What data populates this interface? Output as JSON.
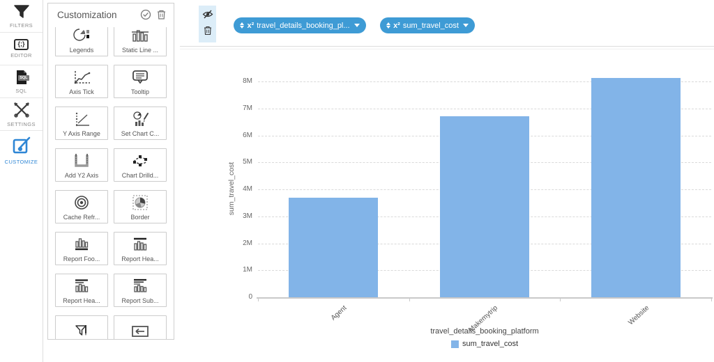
{
  "sidebar": {
    "items": [
      {
        "label": "FILTERS",
        "icon": "filter-funnel-icon"
      },
      {
        "label": "EDITOR",
        "icon": "editor-braces-icon"
      },
      {
        "label": "SQL",
        "icon": "sql-document-icon"
      },
      {
        "label": "SETTINGS",
        "icon": "crossed-tools-icon"
      },
      {
        "label": "CUSTOMIZE",
        "icon": "customize-pencil-icon"
      }
    ],
    "active_item": "CUSTOMIZE",
    "active_color": "#2e86d5"
  },
  "icons": {
    "editor_glyph": "{;}",
    "sql_glyph": "SQL"
  },
  "panel": {
    "title": "Customization",
    "header_icons": [
      "check-circle-icon",
      "trash-icon"
    ],
    "items": [
      {
        "label": "Legends",
        "icon": "legends-pie-icon"
      },
      {
        "label": "Static Line ...",
        "icon": "static-line-chart-icon"
      },
      {
        "label": "Axis Tick",
        "icon": "axis-tick-icon"
      },
      {
        "label": "Tooltip",
        "icon": "tooltip-bubble-icon"
      },
      {
        "label": "Y Axis Range",
        "icon": "y-axis-range-icon"
      },
      {
        "label": "Set Chart C...",
        "icon": "chart-color-icon"
      },
      {
        "label": "Add Y2 Axis",
        "icon": "y2-axis-icon"
      },
      {
        "label": "Chart Drilld...",
        "icon": "drilldown-loop-icon"
      },
      {
        "label": "Cache Refr...",
        "icon": "cache-refresh-icon"
      },
      {
        "label": "Border",
        "icon": "border-pie-icon"
      },
      {
        "label": "Report Foo...",
        "icon": "report-footer-icon"
      },
      {
        "label": "Report Hea...",
        "icon": "report-header-icon"
      },
      {
        "label": "Report Hea...",
        "icon": "report-header2-icon"
      },
      {
        "label": "Report Sub...",
        "icon": "report-subtitle-icon"
      },
      {
        "label": "",
        "icon": "filter-edit-icon"
      },
      {
        "label": "",
        "icon": "back-arrow-icon"
      }
    ]
  },
  "toolbar": {
    "strip_icons": [
      "eye-off-icon",
      "trash-icon"
    ],
    "pills": [
      {
        "prefix": "x²",
        "label": "travel_details_booking_pl...",
        "icon": "sort-icon"
      },
      {
        "prefix": "x²",
        "label": "sum_travel_cost",
        "icon": "sort-icon"
      }
    ],
    "pill_color": "#3e9bd5"
  },
  "chart_data": {
    "type": "bar",
    "title": "",
    "categories": [
      "Agent",
      "Makemytrip",
      "Website"
    ],
    "series": [
      {
        "name": "sum_travel_cost",
        "values": [
          3700000,
          6700000,
          8130000
        ]
      }
    ],
    "xlabel": "travel_details_booking_platform",
    "ylabel": "sum_travel_cost",
    "ylim": [
      0,
      8000000
    ],
    "yticks": [
      "0",
      "1M",
      "2M",
      "3M",
      "4M",
      "5M",
      "6M",
      "7M",
      "8M"
    ],
    "grid": "horizontal-dashed",
    "legend_position": "bottom",
    "legend_entries": [
      "sum_travel_cost"
    ],
    "bar_color": "#82b4e8"
  }
}
